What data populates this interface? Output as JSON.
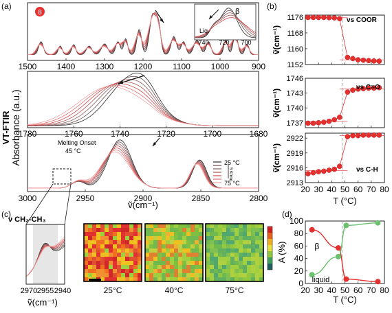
{
  "panel_labels": {
    "a": "(a)",
    "b": "(b)",
    "c": "(c)",
    "d": "(d)"
  },
  "colors": {
    "red": "#e53030",
    "green": "#6cc070",
    "guide": "#999999",
    "dark": "#222222"
  },
  "panel_a": {
    "ylabel_line1": "VT-FTIR",
    "ylabel_line2": "Absorbance (a.u.)",
    "xlabel": "ṽ(cm⁻¹)",
    "badge": "8",
    "inset": {
      "label_phase": "β",
      "label_liquid": "Liq.",
      "ticks": [
        "740",
        "720",
        "700"
      ]
    },
    "sub_panels": [
      {
        "ticks": [
          "1500",
          "1400",
          "1300",
          "1200",
          "1100",
          "1000",
          "900"
        ]
      },
      {
        "ticks": [
          "1780",
          "1760",
          "1740",
          "1720",
          "1700",
          "1680"
        ]
      },
      {
        "ticks": [
          "3000",
          "2950",
          "2900",
          "2850",
          "2800"
        ],
        "note_line1": "Melting Onset",
        "note_line2": "45 °C"
      }
    ],
    "legend": {
      "top": "25 °C",
      "bottom": "75 °C",
      "rate": "5 K/min"
    }
  },
  "panel_c": {
    "zoom_title": "ν CH₂-CH₃",
    "zoom_ticks": [
      "2970",
      "2955",
      "2940"
    ],
    "zoom_xlabel": "ṽ(cm⁻¹)",
    "maps": [
      {
        "label": "25°C"
      },
      {
        "label": "40°C"
      },
      {
        "label": "75°C"
      }
    ]
  },
  "chart_data": [
    {
      "type": "line",
      "panel": "b",
      "xlabel": "T (°C)",
      "x_ticks": [
        "20",
        "30",
        "40",
        "50",
        "60",
        "70",
        "80"
      ],
      "xlim": [
        20,
        80
      ],
      "vline": 48,
      "subplots": [
        {
          "annotation": "νs COOR",
          "ylabel": "ṽ(cm⁻¹)",
          "ylim": [
            1152,
            1177
          ],
          "y_ticks": [
            "1176",
            "1168",
            "1160",
            "1152"
          ],
          "x": [
            22,
            26,
            30,
            34,
            38,
            42,
            46,
            52,
            56,
            60,
            64,
            68,
            72,
            76
          ],
          "y": [
            1175.8,
            1175.8,
            1175.8,
            1175.8,
            1175.7,
            1175.6,
            1175.2,
            1155.6,
            1155.0,
            1154.4,
            1154.2,
            1154.0,
            1153.8,
            1153.7
          ]
        },
        {
          "annotation": "νs C=O",
          "ylabel": "ṽ(cm⁻¹)",
          "ylim": [
            1736,
            1746
          ],
          "y_ticks": [
            "1746",
            "1743",
            "1740",
            "1737"
          ],
          "x": [
            22,
            26,
            30,
            34,
            38,
            42,
            46,
            52,
            56,
            60,
            64,
            68,
            72,
            76
          ],
          "y": [
            1736.9,
            1736.9,
            1737.0,
            1737.1,
            1737.3,
            1737.6,
            1738.1,
            1743.2,
            1743.6,
            1743.8,
            1743.9,
            1744.0,
            1744.0,
            1744.1
          ]
        },
        {
          "annotation": "νs C-H",
          "ylabel": "ṽ(cm⁻¹)",
          "ylim": [
            2913,
            2923
          ],
          "y_ticks": [
            "2922",
            "2919",
            "2916",
            "2913"
          ],
          "x": [
            22,
            26,
            30,
            34,
            38,
            42,
            46,
            52,
            56,
            60,
            64,
            68,
            72,
            76
          ],
          "y": [
            2914.8,
            2915.0,
            2915.2,
            2915.3,
            2915.5,
            2915.7,
            2916.3,
            2922.3,
            2922.5,
            2922.5,
            2922.6,
            2922.6,
            2922.6,
            2922.6
          ]
        }
      ]
    },
    {
      "type": "line",
      "panel": "d",
      "ylabel": "A (%)",
      "xlabel": "T (°C)",
      "xlim": [
        20,
        80
      ],
      "ylim": [
        0,
        100
      ],
      "x_ticks": [
        "20",
        "30",
        "40",
        "50",
        "60",
        "70",
        "80"
      ],
      "y_ticks": [
        "0",
        "20",
        "40",
        "60",
        "80",
        "100"
      ],
      "vline": 48,
      "series": [
        {
          "name": "β",
          "x": [
            25,
            45,
            51,
            75
          ],
          "y": [
            86,
            57,
            7,
            3
          ]
        },
        {
          "name": "liquid",
          "x": [
            25,
            45,
            51,
            75
          ],
          "y": [
            14,
            43,
            93,
            97
          ]
        }
      ]
    }
  ]
}
